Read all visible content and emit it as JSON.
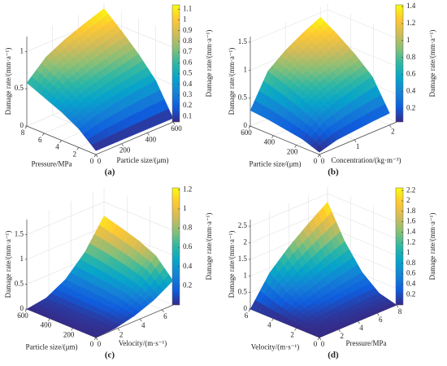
{
  "chart_data": [
    {
      "type": "surface",
      "panel_label": "(a)",
      "zlabel": "Damage rate/(mm·a⁻¹)",
      "xlabel": "Particle size/(μm)",
      "ylabel": "Pressure/MPa",
      "colorbar_label": "Damage rate/(mm·a⁻¹)",
      "x": [
        0,
        150,
        300,
        450,
        600
      ],
      "y": [
        0,
        2,
        4,
        6,
        8
      ],
      "z": [
        [
          0.05,
          0.05,
          0.05,
          0.05,
          0.05
        ],
        [
          0.25,
          0.34,
          0.39,
          0.43,
          0.46
        ],
        [
          0.38,
          0.52,
          0.6,
          0.66,
          0.72
        ],
        [
          0.48,
          0.68,
          0.78,
          0.87,
          0.94
        ],
        [
          0.58,
          0.82,
          0.95,
          1.05,
          1.14
        ]
      ],
      "xlim": [
        0,
        600
      ],
      "ylim": [
        0,
        8
      ],
      "zlim": [
        0,
        1.2
      ],
      "xticks": [
        0,
        200,
        400,
        600
      ],
      "yticks": [
        0,
        2,
        4,
        6,
        8
      ],
      "zticks": [
        0,
        0.5,
        1
      ],
      "clim": [
        0.05,
        1.14
      ],
      "cticks": [
        0.1,
        0.2,
        0.3,
        0.4,
        0.5,
        0.6,
        0.7,
        0.8,
        0.9,
        1,
        1.1
      ]
    },
    {
      "type": "surface",
      "panel_label": "(b)",
      "zlabel": "Damage rate/(mm·a⁻¹)",
      "xlabel": "Concentration/(kg·m⁻³)",
      "ylabel": "Particle size/(μm)",
      "colorbar_label": "Damage rate/(mm·a⁻¹)",
      "x": [
        0,
        0.5,
        1,
        1.5,
        2
      ],
      "y": [
        0,
        150,
        300,
        450,
        600
      ],
      "z": [
        [
          0.04,
          0.13,
          0.16,
          0.19,
          0.21
        ],
        [
          0.15,
          0.44,
          0.57,
          0.66,
          0.74
        ],
        [
          0.2,
          0.61,
          0.77,
          0.9,
          1.01
        ],
        [
          0.25,
          0.74,
          0.94,
          1.1,
          1.23
        ],
        [
          0.28,
          0.85,
          1.09,
          1.27,
          1.42
        ]
      ],
      "xlim": [
        0,
        2.2
      ],
      "ylim": [
        0,
        600
      ],
      "zlim": [
        0,
        1.6
      ],
      "xticks": [
        0,
        1,
        2
      ],
      "yticks": [
        0,
        200,
        400,
        600
      ],
      "zticks": [
        0,
        0.5,
        1,
        1.5
      ],
      "clim": [
        0.04,
        1.42
      ],
      "cticks": [
        0.2,
        0.4,
        0.6,
        0.8,
        1,
        1.2,
        1.4
      ]
    },
    {
      "type": "surface",
      "panel_label": "(c)",
      "zlabel": "Damage rate/(mm·a⁻¹)",
      "xlabel": "Velocity/(m·s⁻¹)",
      "ylabel": "Particle size/(μm)",
      "colorbar_label": "Damage rate/(mm·a⁻¹)",
      "x": [
        0,
        1.75,
        3.5,
        5.25,
        7
      ],
      "y": [
        0,
        150,
        300,
        450,
        600
      ],
      "z": [
        [
          0,
          0.02,
          0.11,
          0.26,
          0.49
        ],
        [
          0,
          0.04,
          0.19,
          0.45,
          0.85
        ],
        [
          0,
          0.05,
          0.22,
          0.53,
          1.01
        ],
        [
          0,
          0.05,
          0.24,
          0.6,
          1.12
        ],
        [
          0,
          0.06,
          0.27,
          0.65,
          1.22
        ]
      ],
      "xlim": [
        0,
        7
      ],
      "ylim": [
        0,
        600
      ],
      "zlim": [
        0,
        1.8
      ],
      "xticks": [
        0,
        2,
        4,
        6
      ],
      "yticks": [
        0,
        200,
        400,
        600
      ],
      "zticks": [
        0,
        0.5,
        1,
        1.5
      ],
      "clim": [
        0,
        1.22
      ],
      "cticks": [
        0.2,
        0.4,
        0.6,
        0.8,
        1,
        1.2
      ]
    },
    {
      "type": "surface",
      "panel_label": "(d)",
      "zlabel": "Damage rate/(mm·a⁻¹)",
      "xlabel": "Pressure/MPa",
      "ylabel": "Velocity/(m·s⁻¹)",
      "colorbar_label": "Damage rate/(mm·a⁻¹)",
      "x": [
        0,
        2,
        4,
        6,
        8
      ],
      "y": [
        0,
        1.5,
        3,
        4.5,
        6
      ],
      "z": [
        [
          0,
          0,
          0,
          0,
          0
        ],
        [
          0,
          0.05,
          0.09,
          0.12,
          0.14
        ],
        [
          0,
          0.21,
          0.35,
          0.46,
          0.56
        ],
        [
          0,
          0.48,
          0.78,
          1.04,
          1.27
        ],
        [
          0,
          0.85,
          1.39,
          1.84,
          2.25
        ]
      ],
      "xlim": [
        0,
        8
      ],
      "ylim": [
        0,
        6
      ],
      "zlim": [
        0,
        2.7
      ],
      "xticks": [
        0,
        2,
        4,
        6,
        8
      ],
      "yticks": [
        0,
        2,
        4,
        6
      ],
      "zticks": [
        0,
        0.5,
        1,
        1.5,
        2,
        2.5
      ],
      "clim": [
        0,
        2.25
      ],
      "cticks": [
        0.2,
        0.4,
        0.6,
        0.8,
        1,
        1.2,
        1.4,
        1.6,
        1.8,
        2,
        2.2
      ]
    }
  ]
}
